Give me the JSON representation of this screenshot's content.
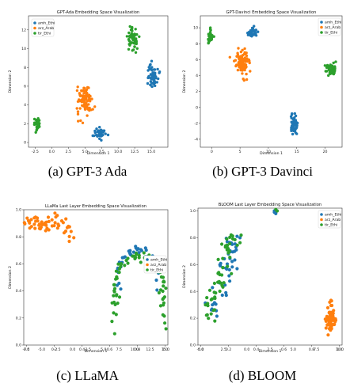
{
  "colors": {
    "amh_Ethi": "#1f77b4",
    "arz_Arab": "#ff7f0e",
    "tir_Ethi": "#2ca02c"
  },
  "captions": [
    "(a) GPT-3 Ada",
    "(b) GPT-3 Davinci",
    "(c) LLaMA",
    "(d) BLOOM"
  ],
  "chart_data": [
    {
      "type": "scatter",
      "title": "GPT-Ada Embedding Space Visualization",
      "xlabel": "Dimension 1",
      "ylabel": "Dimension 2",
      "xlim": [
        -3.5,
        17.5
      ],
      "ylim": [
        -0.5,
        13.5
      ],
      "xticks": [
        -2.5,
        0.0,
        2.5,
        5.0,
        7.5,
        10.0,
        12.5,
        15.0
      ],
      "xticklabels": [
        "-2.5",
        "0.0",
        "2.5",
        "5.0",
        "7.5",
        "10.0",
        "12.5",
        "15.0"
      ],
      "yticks": [
        0,
        2,
        4,
        6,
        8,
        10,
        12
      ],
      "yticklabels": [
        "0",
        "2",
        "4",
        "6",
        "8",
        "10",
        "12"
      ],
      "legend": {
        "position": "top-left",
        "entries": [
          "amh_Ethi",
          "arz_Arab",
          "tir_Ethi"
        ]
      },
      "series": [
        {
          "name": "amh_Ethi",
          "clusters": [
            {
              "cx": 7.3,
              "cy": 1.0,
              "sx": 0.7,
              "sy": 0.5,
              "n": 40
            },
            {
              "cx": 15.2,
              "cy": 7.2,
              "sx": 0.7,
              "sy": 1.1,
              "n": 60
            }
          ]
        },
        {
          "name": "arz_Arab",
          "clusters": [
            {
              "cx": 5.0,
              "cy": 4.5,
              "sx": 0.9,
              "sy": 1.3,
              "n": 95
            }
          ]
        },
        {
          "name": "tir_Ethi",
          "clusters": [
            {
              "cx": -2.2,
              "cy": 2.0,
              "sx": 0.4,
              "sy": 0.5,
              "n": 30
            },
            {
              "cx": 12.2,
              "cy": 11.0,
              "sx": 0.6,
              "sy": 1.1,
              "n": 60
            }
          ]
        }
      ]
    },
    {
      "type": "scatter",
      "title": "GPT-Davinci Embedding Space Visualization",
      "xlabel": "Dimension 1",
      "ylabel": "Dimension 2",
      "xlim": [
        -2,
        23
      ],
      "ylim": [
        -5,
        11.5
      ],
      "xticks": [
        0,
        5,
        10,
        15,
        20
      ],
      "xticklabels": [
        "0",
        "5",
        "10",
        "15",
        "20"
      ],
      "yticks": [
        -4,
        -2,
        0,
        2,
        4,
        6,
        8,
        10
      ],
      "yticklabels": [
        "-4",
        "-2",
        "0",
        "2",
        "4",
        "6",
        "8",
        "10"
      ],
      "legend": {
        "position": "top-right",
        "entries": [
          "amh_Ethi",
          "arz_Arab",
          "tir_Ethi"
        ]
      },
      "series": [
        {
          "name": "amh_Ethi",
          "clusters": [
            {
              "cx": 14.5,
              "cy": -2.2,
              "sx": 0.5,
              "sy": 1.0,
              "n": 55
            },
            {
              "cx": 7.2,
              "cy": 9.3,
              "sx": 0.8,
              "sy": 0.6,
              "n": 35
            }
          ]
        },
        {
          "name": "arz_Arab",
          "clusters": [
            {
              "cx": 5.3,
              "cy": 5.8,
              "sx": 1.0,
              "sy": 1.2,
              "n": 100
            }
          ]
        },
        {
          "name": "tir_Ethi",
          "clusters": [
            {
              "cx": -0.2,
              "cy": 8.8,
              "sx": 0.4,
              "sy": 0.8,
              "n": 30
            },
            {
              "cx": 21.0,
              "cy": 4.8,
              "sx": 0.8,
              "sy": 0.6,
              "n": 50
            }
          ]
        }
      ]
    },
    {
      "type": "scatter",
      "title": "LLaMa Last Layer Embedding Space Visualization",
      "xlabel": "Dimension 1",
      "ylabel": "Dimension 2",
      "xlim": [
        -0.02,
        1.02
      ],
      "ylim": [
        0.0,
        1.0
      ],
      "xticks": [
        0.0,
        0.2,
        0.4,
        0.6,
        0.8,
        1.0
      ],
      "xticklabels": [
        "0.0",
        "0.2",
        "0.4",
        "0.6",
        "0.8",
        "1.0"
      ],
      "yticks": [
        0.0,
        0.2,
        0.4,
        0.6,
        0.8,
        1.0
      ],
      "yticklabels": [
        "0.0",
        "0.2",
        "0.4",
        "0.6",
        "0.8",
        "1.0"
      ],
      "extra_xticklabels": [
        "-7.5",
        "-5.0",
        "-2.5",
        "0.0",
        "2.5",
        "5.0",
        "7.5",
        "10.0",
        "12.5",
        "15.0"
      ],
      "legend": {
        "position": "center-right",
        "entries": [
          "amh_Ethi",
          "arz_Arab",
          "tir_Ethi"
        ]
      },
      "series": [
        {
          "name": "arz_Arab",
          "shape": "blob",
          "points_frac": [
            [
              0.03,
              0.93
            ],
            [
              0.07,
              0.92
            ],
            [
              0.11,
              0.9
            ],
            [
              0.15,
              0.91
            ],
            [
              0.19,
              0.93
            ],
            [
              0.23,
              0.95
            ],
            [
              0.27,
              0.92
            ],
            [
              0.31,
              0.87
            ],
            [
              0.34,
              0.79
            ],
            [
              0.05,
              0.88
            ],
            [
              0.09,
              0.86
            ],
            [
              0.13,
              0.89
            ],
            [
              0.17,
              0.86
            ],
            [
              0.21,
              0.9
            ],
            [
              0.25,
              0.88
            ],
            [
              0.29,
              0.84
            ],
            [
              0.02,
              0.91
            ],
            [
              0.08,
              0.94
            ]
          ]
        },
        {
          "name": "amh_Ethi",
          "shape": "arc",
          "arc": {
            "cx": 0.79,
            "cy": 0.4,
            "rx": 0.15,
            "ry": 0.31,
            "t0": 0.15,
            "t1": 0.85
          },
          "n": 40
        },
        {
          "name": "tir_Ethi",
          "shape": "arc",
          "arc": {
            "cx": 0.8,
            "cy": 0.36,
            "rx": 0.18,
            "ry": 0.3,
            "t0": 0.0,
            "t1": 1.0
          },
          "n": 55
        }
      ]
    },
    {
      "type": "scatter",
      "title": "BLOOM Last Layer Embedding Space Visualization",
      "xlabel": "Dimension 1",
      "ylabel": "Dimension 2",
      "xlim": [
        -0.02,
        1.02
      ],
      "ylim": [
        0.0,
        1.02
      ],
      "xticks": [
        0.0,
        0.2,
        0.4,
        0.6,
        0.8,
        1.0
      ],
      "xticklabels": [
        "0.0",
        "0.2",
        "0.4",
        "0.6",
        "0.8",
        "1.0"
      ],
      "yticks": [
        0.0,
        0.2,
        0.4,
        0.6,
        0.8,
        1.0
      ],
      "yticklabels": [
        "0.0",
        "0.2",
        "0.4",
        "0.6",
        "0.8",
        "1.0"
      ],
      "extra_xticklabels": [
        "-5.0",
        "2.5",
        "0.0",
        "2.5",
        "5.0",
        "7.5",
        "10.0"
      ],
      "legend": {
        "position": "top-right",
        "entries": [
          "amh_Ethi",
          "arz_Arab",
          "tir_Ethi"
        ]
      },
      "series": [
        {
          "name": "amh_Ethi",
          "shape": "line",
          "path": [
            [
              0.07,
              0.18
            ],
            [
              0.13,
              0.3
            ],
            [
              0.19,
              0.52
            ],
            [
              0.24,
              0.7
            ],
            [
              0.28,
              0.8
            ]
          ],
          "spread": 0.03,
          "n": 45,
          "extra": [
            [
              0.53,
              0.98
            ],
            [
              0.54,
              0.96
            ],
            [
              0.53,
              0.97
            ]
          ]
        },
        {
          "name": "tir_Ethi",
          "shape": "line",
          "path": [
            [
              0.06,
              0.2
            ],
            [
              0.11,
              0.35
            ],
            [
              0.17,
              0.55
            ],
            [
              0.21,
              0.7
            ],
            [
              0.26,
              0.78
            ]
          ],
          "spread": 0.03,
          "n": 60,
          "extra": [
            [
              0.55,
              0.98
            ],
            [
              0.54,
              0.99
            ]
          ]
        },
        {
          "name": "arz_Arab",
          "shape": "blob",
          "clusters": [
            {
              "cx": 0.92,
              "cy": 0.2,
              "sx": 0.025,
              "sy": 0.08,
              "n": 65
            }
          ]
        }
      ]
    }
  ]
}
